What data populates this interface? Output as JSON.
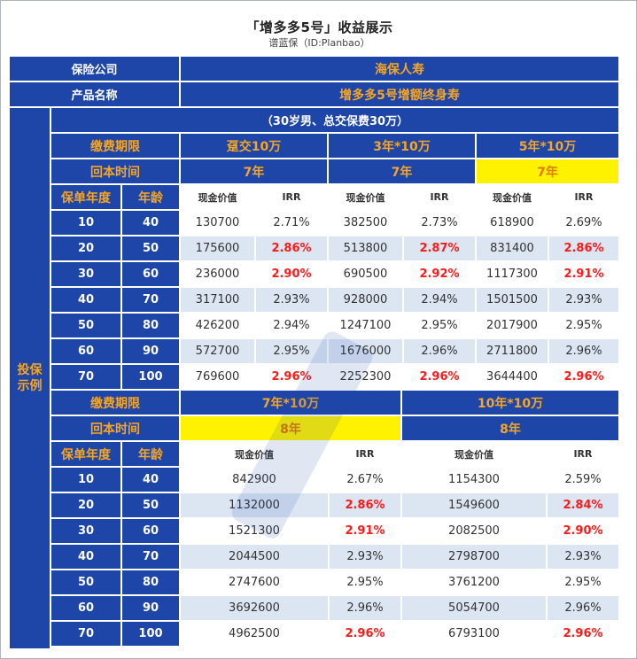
{
  "header": {
    "title": "「增多多5号」收益展示",
    "subtitle": "谱蓝保（ID:Planbao）"
  },
  "company": {
    "label": "保险公司",
    "value": "海保人寿"
  },
  "product": {
    "label": "产品名称",
    "value": "增多多5号增额终身寿"
  },
  "side_label": [
    "投保",
    "示例"
  ],
  "scenario": "（30岁男、总交保费30万）",
  "section1": {
    "period_label": "缴费期限",
    "periods": [
      "趸交10万",
      "3年*10万",
      "5年*10万"
    ],
    "breakeven_label": "回本时间",
    "breakeven": [
      "7年",
      "7年",
      "7年"
    ],
    "year_label": "保单年度",
    "age_label": "年龄",
    "col_cash": "现金价值",
    "col_irr": "IRR",
    "rows": [
      {
        "year": "10",
        "age": "40",
        "cols": [
          {
            "cash": "130700",
            "irr": "2.71%"
          },
          {
            "cash": "382500",
            "irr": "2.73%"
          },
          {
            "cash": "618900",
            "irr": "2.69%"
          }
        ]
      },
      {
        "year": "20",
        "age": "50",
        "cols": [
          {
            "cash": "175600",
            "irr": "2.86%"
          },
          {
            "cash": "513800",
            "irr": "2.87%"
          },
          {
            "cash": "831400",
            "irr": "2.86%"
          }
        ]
      },
      {
        "year": "30",
        "age": "60",
        "cols": [
          {
            "cash": "236000",
            "irr": "2.90%"
          },
          {
            "cash": "690500",
            "irr": "2.92%"
          },
          {
            "cash": "1117300",
            "irr": "2.91%"
          }
        ]
      },
      {
        "year": "40",
        "age": "70",
        "cols": [
          {
            "cash": "317100",
            "irr": "2.93%"
          },
          {
            "cash": "928000",
            "irr": "2.94%"
          },
          {
            "cash": "1501500",
            "irr": "2.93%"
          }
        ]
      },
      {
        "year": "50",
        "age": "80",
        "cols": [
          {
            "cash": "426200",
            "irr": "2.94%"
          },
          {
            "cash": "1247100",
            "irr": "2.95%"
          },
          {
            "cash": "2017900",
            "irr": "2.95%"
          }
        ]
      },
      {
        "year": "60",
        "age": "90",
        "cols": [
          {
            "cash": "572700",
            "irr": "2.95%"
          },
          {
            "cash": "1676000",
            "irr": "2.96%"
          },
          {
            "cash": "2711800",
            "irr": "2.96%"
          }
        ]
      },
      {
        "year": "70",
        "age": "100",
        "cols": [
          {
            "cash": "769600",
            "irr": "2.96%"
          },
          {
            "cash": "2252300",
            "irr": "2.96%"
          },
          {
            "cash": "3644400",
            "irr": "2.96%"
          }
        ]
      }
    ]
  },
  "section2": {
    "period_label": "缴费期限",
    "periods": [
      "7年*10万",
      "10年*10万"
    ],
    "breakeven_label": "回本时间",
    "breakeven": [
      "8年",
      "8年"
    ],
    "year_label": "保单年度",
    "age_label": "年龄",
    "col_cash": "现金价值",
    "col_irr": "IRR",
    "rows": [
      {
        "year": "10",
        "age": "40",
        "cols": [
          {
            "cash": "842900",
            "irr": "2.67%"
          },
          {
            "cash": "1154300",
            "irr": "2.59%"
          }
        ]
      },
      {
        "year": "20",
        "age": "50",
        "cols": [
          {
            "cash": "1132000",
            "irr": "2.86%"
          },
          {
            "cash": "1549600",
            "irr": "2.84%"
          }
        ]
      },
      {
        "year": "30",
        "age": "60",
        "cols": [
          {
            "cash": "1521300",
            "irr": "2.91%"
          },
          {
            "cash": "2082500",
            "irr": "2.90%"
          }
        ]
      },
      {
        "year": "40",
        "age": "70",
        "cols": [
          {
            "cash": "2044500",
            "irr": "2.93%"
          },
          {
            "cash": "2798700",
            "irr": "2.93%"
          }
        ]
      },
      {
        "year": "50",
        "age": "80",
        "cols": [
          {
            "cash": "2747600",
            "irr": "2.95%"
          },
          {
            "cash": "3761200",
            "irr": "2.95%"
          }
        ]
      },
      {
        "year": "60",
        "age": "90",
        "cols": [
          {
            "cash": "3692600",
            "irr": "2.96%"
          },
          {
            "cash": "5054700",
            "irr": "2.96%"
          }
        ]
      },
      {
        "year": "70",
        "age": "100",
        "cols": [
          {
            "cash": "4962500",
            "irr": "2.96%"
          },
          {
            "cash": "6793100",
            "irr": "2.96%"
          }
        ]
      }
    ]
  },
  "colors": {
    "header_blue": "#1e46a8",
    "accent_orange": "#f6a524",
    "highlight_yellow": "#fff200",
    "row_alt": "#dce6f3",
    "irr_red": "#ff1a1a"
  },
  "highlight": {
    "section1_breakeven_index": 2,
    "section2_breakeven_index": 0,
    "red_irr_rows": [
      1,
      2,
      6
    ]
  }
}
